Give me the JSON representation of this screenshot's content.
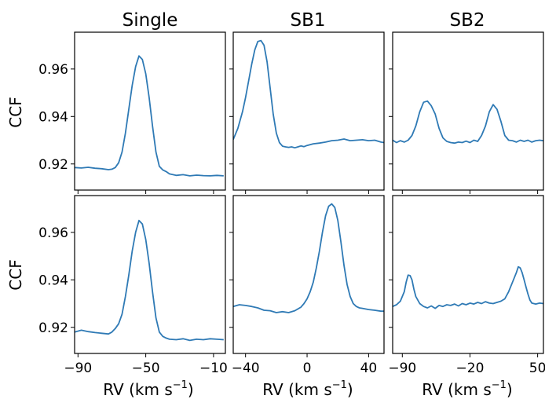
{
  "figure": {
    "line_color": "#2f7ab5",
    "column_titles": [
      "Single",
      "SB1",
      "SB2"
    ],
    "row_ylabel": "CCF",
    "x_label": "RV (km s",
    "x_label_sup": "−1",
    "x_label_close": ")"
  },
  "chart_data": [
    {
      "type": "line",
      "panel": "top-left",
      "title": "Single",
      "ylabel": "CCF",
      "xlabel": "",
      "xlim": [
        -92,
        -3
      ],
      "ylim": [
        0.909,
        0.9755
      ],
      "xticks": [
        -90,
        -50,
        -10
      ],
      "xtick_labels": [
        "",
        "",
        ""
      ],
      "yticks": [
        0.92,
        0.94,
        0.96
      ],
      "ytick_labels": [
        "0.92",
        "0.94",
        "0.96"
      ],
      "series": [
        {
          "x": [
            -92,
            -88,
            -84,
            -80,
            -76,
            -72,
            -70,
            -68,
            -66,
            -64,
            -62,
            -60,
            -58,
            -56,
            -54,
            -52,
            -50,
            -48,
            -46,
            -44,
            -42,
            -40,
            -38,
            -36,
            -32,
            -28,
            -24,
            -20,
            -16,
            -12,
            -8,
            -4
          ],
          "y": [
            0.9185,
            0.9183,
            0.9186,
            0.9182,
            0.918,
            0.9176,
            0.9178,
            0.9185,
            0.9205,
            0.925,
            0.933,
            0.943,
            0.953,
            0.961,
            0.9655,
            0.964,
            0.958,
            0.948,
            0.936,
            0.925,
            0.919,
            0.9175,
            0.9168,
            0.9158,
            0.9152,
            0.9155,
            0.915,
            0.9153,
            0.9151,
            0.915,
            0.9152,
            0.915
          ]
        }
      ]
    },
    {
      "type": "line",
      "panel": "top-middle",
      "title": "SB1",
      "ylabel": "",
      "xlabel": "",
      "xlim": [
        -48,
        50
      ],
      "ylim": [
        0.909,
        0.9755
      ],
      "xticks": [
        -40,
        0,
        40
      ],
      "xtick_labels": [
        "",
        "",
        ""
      ],
      "yticks": [
        0.92,
        0.94,
        0.96
      ],
      "ytick_labels": [
        "",
        "",
        ""
      ],
      "series": [
        {
          "x": [
            -48,
            -45,
            -42,
            -40,
            -38,
            -36,
            -34,
            -32,
            -30,
            -28,
            -26,
            -24,
            -22,
            -20,
            -18,
            -16,
            -14,
            -12,
            -10,
            -8,
            -6,
            -4,
            -2,
            0,
            4,
            8,
            12,
            16,
            20,
            24,
            28,
            32,
            36,
            40,
            44,
            48,
            50
          ],
          "y": [
            0.9303,
            0.935,
            0.942,
            0.948,
            0.955,
            0.962,
            0.968,
            0.9716,
            0.972,
            0.97,
            0.963,
            0.952,
            0.941,
            0.933,
            0.929,
            0.9275,
            0.9272,
            0.927,
            0.9272,
            0.9268,
            0.9272,
            0.9276,
            0.9273,
            0.9278,
            0.9285,
            0.9288,
            0.9292,
            0.9298,
            0.93,
            0.9305,
            0.9298,
            0.93,
            0.9302,
            0.9298,
            0.93,
            0.9292,
            0.929
          ]
        }
      ]
    },
    {
      "type": "line",
      "panel": "top-right",
      "title": "SB2",
      "ylabel": "",
      "xlabel": "",
      "xlim": [
        -100,
        56
      ],
      "ylim": [
        0.909,
        0.9755
      ],
      "xticks": [
        -90,
        -20,
        50
      ],
      "xtick_labels": [
        "",
        "",
        ""
      ],
      "yticks": [
        0.92,
        0.94,
        0.96
      ],
      "ytick_labels": [
        "",
        "",
        ""
      ],
      "series": [
        {
          "x": [
            -100,
            -96,
            -92,
            -88,
            -84,
            -80,
            -76,
            -72,
            -68,
            -64,
            -60,
            -56,
            -52,
            -48,
            -44,
            -40,
            -36,
            -32,
            -28,
            -24,
            -20,
            -16,
            -12,
            -8,
            -4,
            0,
            4,
            8,
            12,
            16,
            20,
            24,
            28,
            32,
            36,
            40,
            44,
            48,
            52,
            56
          ],
          "y": [
            0.93,
            0.929,
            0.9298,
            0.9292,
            0.93,
            0.932,
            0.936,
            0.942,
            0.946,
            0.9465,
            0.9445,
            0.941,
            0.935,
            0.931,
            0.9295,
            0.929,
            0.9288,
            0.9292,
            0.929,
            0.9296,
            0.929,
            0.93,
            0.9295,
            0.932,
            0.936,
            0.942,
            0.945,
            0.943,
            0.938,
            0.932,
            0.93,
            0.9298,
            0.9292,
            0.93,
            0.9295,
            0.93,
            0.9292,
            0.9298,
            0.93,
            0.9298
          ]
        }
      ]
    },
    {
      "type": "line",
      "panel": "bottom-left",
      "title": "",
      "ylabel": "CCF",
      "xlabel": "RV (km s−1)",
      "xlim": [
        -92,
        -3
      ],
      "ylim": [
        0.909,
        0.9755
      ],
      "xticks": [
        -90,
        -50,
        -10
      ],
      "xtick_labels": [
        "−90",
        "−50",
        "−10"
      ],
      "yticks": [
        0.92,
        0.94,
        0.96
      ],
      "ytick_labels": [
        "0.92",
        "0.94",
        "0.96"
      ],
      "series": [
        {
          "x": [
            -92,
            -88,
            -84,
            -80,
            -76,
            -72,
            -70,
            -68,
            -66,
            -64,
            -62,
            -60,
            -58,
            -56,
            -54,
            -52,
            -50,
            -48,
            -46,
            -44,
            -42,
            -40,
            -38,
            -36,
            -32,
            -28,
            -24,
            -20,
            -16,
            -12,
            -8,
            -4
          ],
          "y": [
            0.918,
            0.9188,
            0.9182,
            0.9178,
            0.9175,
            0.9172,
            0.918,
            0.9195,
            0.9215,
            0.9255,
            0.933,
            0.942,
            0.952,
            0.96,
            0.965,
            0.9635,
            0.957,
            0.947,
            0.935,
            0.924,
            0.918,
            0.9162,
            0.9155,
            0.915,
            0.9148,
            0.9152,
            0.9145,
            0.915,
            0.9148,
            0.9152,
            0.915,
            0.9148
          ]
        }
      ]
    },
    {
      "type": "line",
      "panel": "bottom-middle",
      "title": "",
      "ylabel": "",
      "xlabel": "RV (km s−1)",
      "xlim": [
        -48,
        50
      ],
      "ylim": [
        0.909,
        0.9755
      ],
      "xticks": [
        -40,
        0,
        40
      ],
      "xtick_labels": [
        "−40",
        "0",
        "40"
      ],
      "yticks": [
        0.92,
        0.94,
        0.96
      ],
      "ytick_labels": [
        "",
        "",
        ""
      ],
      "series": [
        {
          "x": [
            -48,
            -44,
            -40,
            -36,
            -32,
            -28,
            -24,
            -20,
            -16,
            -12,
            -8,
            -4,
            -2,
            0,
            2,
            4,
            6,
            8,
            10,
            12,
            14,
            16,
            18,
            20,
            22,
            24,
            26,
            28,
            30,
            32,
            34,
            36,
            40,
            44,
            48,
            50
          ],
          "y": [
            0.9288,
            0.9295,
            0.9292,
            0.9288,
            0.9282,
            0.9272,
            0.927,
            0.9262,
            0.9266,
            0.9262,
            0.927,
            0.9285,
            0.93,
            0.932,
            0.935,
            0.939,
            0.945,
            0.952,
            0.96,
            0.967,
            0.971,
            0.972,
            0.9705,
            0.965,
            0.956,
            0.946,
            0.938,
            0.933,
            0.93,
            0.9288,
            0.9282,
            0.928,
            0.9275,
            0.9272,
            0.9268,
            0.9268
          ]
        }
      ]
    },
    {
      "type": "line",
      "panel": "bottom-right",
      "title": "",
      "ylabel": "",
      "xlabel": "RV (km s−1)",
      "xlim": [
        -100,
        56
      ],
      "ylim": [
        0.909,
        0.9755
      ],
      "xticks": [
        -90,
        -20,
        50
      ],
      "xtick_labels": [
        "−90",
        "−20",
        "50"
      ],
      "yticks": [
        0.92,
        0.94,
        0.96
      ],
      "ytick_labels": [
        "",
        "",
        ""
      ],
      "series": [
        {
          "x": [
            -100,
            -96,
            -92,
            -88,
            -86,
            -84,
            -82,
            -80,
            -78,
            -76,
            -72,
            -68,
            -64,
            -60,
            -56,
            -52,
            -48,
            -44,
            -40,
            -36,
            -32,
            -28,
            -24,
            -20,
            -16,
            -12,
            -8,
            -4,
            0,
            4,
            8,
            12,
            16,
            20,
            24,
            28,
            30,
            32,
            34,
            36,
            38,
            40,
            42,
            44,
            46,
            48,
            52,
            56
          ],
          "y": [
            0.9288,
            0.9295,
            0.931,
            0.935,
            0.939,
            0.942,
            0.9418,
            0.94,
            0.936,
            0.933,
            0.93,
            0.9288,
            0.9282,
            0.929,
            0.928,
            0.9292,
            0.9288,
            0.9295,
            0.9292,
            0.9298,
            0.929,
            0.93,
            0.9295,
            0.9302,
            0.9298,
            0.9305,
            0.93,
            0.9308,
            0.9302,
            0.93,
            0.9305,
            0.931,
            0.932,
            0.935,
            0.939,
            0.943,
            0.9455,
            0.945,
            0.943,
            0.94,
            0.937,
            0.934,
            0.9315,
            0.9302,
            0.93,
            0.9298,
            0.9302,
            0.93
          ]
        }
      ]
    }
  ]
}
